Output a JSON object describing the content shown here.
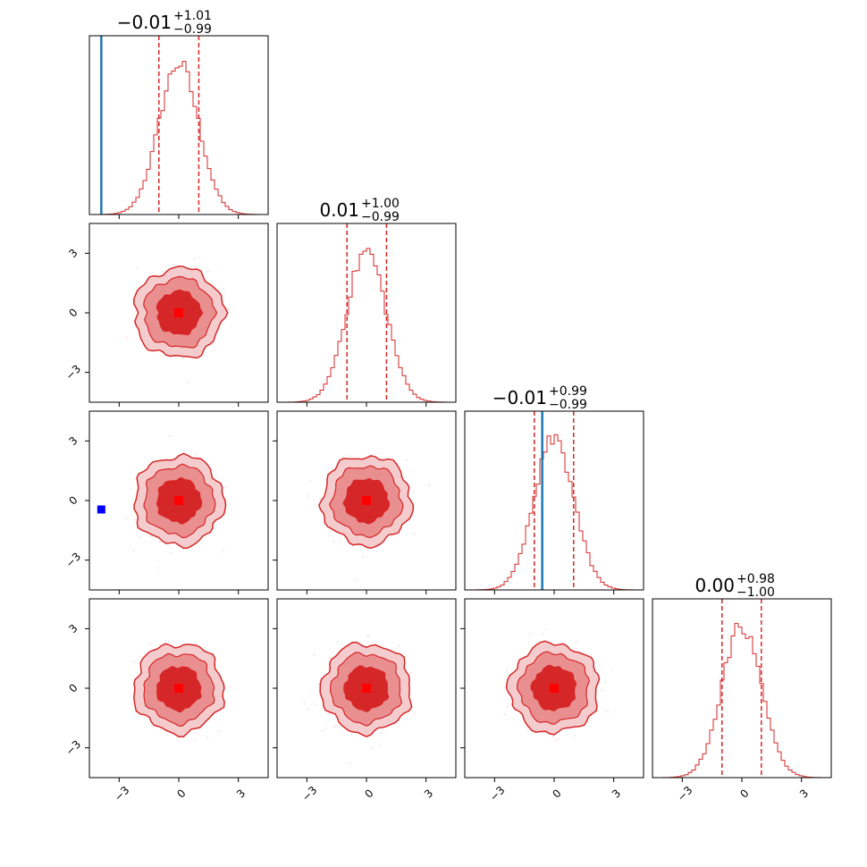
{
  "chart_data": {
    "type": "corner",
    "n_params": 4,
    "axis_range": [
      -4.5,
      4.5
    ],
    "ticks": [
      -3,
      0,
      3
    ],
    "tick_labels": [
      "−3",
      "0",
      "3"
    ],
    "titles": [
      {
        "median": "−0.01",
        "plus": "+1.01",
        "minus": "−0.99"
      },
      {
        "median": "0.01",
        "plus": "+1.00",
        "minus": "−0.99"
      },
      {
        "median": "−0.01",
        "plus": "+0.99",
        "minus": "−0.99"
      },
      {
        "median": "0.00",
        "plus": "+0.98",
        "minus": "−1.00"
      }
    ],
    "quantiles": [
      [
        -1.0,
        0.0,
        1.01
      ],
      [
        -0.98,
        0.01,
        1.01
      ],
      [
        -1.0,
        -0.01,
        0.98
      ],
      [
        -1.0,
        0.0,
        0.98
      ]
    ],
    "truths": [
      -3.9,
      null,
      -0.6,
      null
    ],
    "highlight_point": {
      "x": -3.9,
      "y": -0.45,
      "panel": [
        2,
        0
      ]
    },
    "contour_levels_sigma": [
      1,
      2,
      3
    ],
    "colors": {
      "samples": "#d62728",
      "fill_inner": "#d62728",
      "fill_mid": "#ea8f90",
      "fill_outer": "#f5cccd",
      "truth": "#1f77b4",
      "highlight": "#0000ff",
      "median_marker": "#ff0000"
    },
    "grid": false
  }
}
